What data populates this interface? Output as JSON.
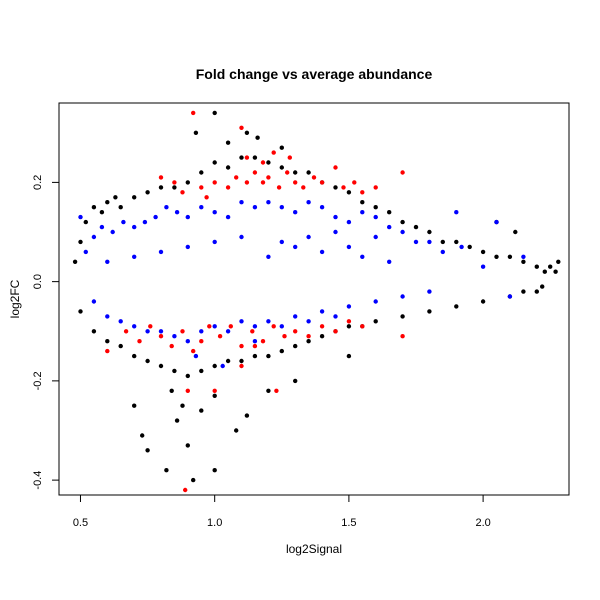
{
  "chart_data": {
    "type": "scatter",
    "title": "Fold change vs average abundance",
    "xlabel": "log2Signal",
    "ylabel": "log2FC",
    "xlim": [
      0.42,
      2.32
    ],
    "ylim": [
      -0.43,
      0.36
    ],
    "xticks": [
      0.5,
      1.0,
      1.5,
      2.0
    ],
    "xtick_labels": [
      "0.5",
      "1.0",
      "1.5",
      "2.0"
    ],
    "yticks": [
      -0.4,
      -0.2,
      0.0,
      0.2
    ],
    "ytick_labels": [
      "-0.4",
      "-0.2",
      "0.0",
      "0.2"
    ],
    "grid": false,
    "legend": "none",
    "series": [
      {
        "color": "#000000",
        "points": [
          [
            0.48,
            0.04
          ],
          [
            0.5,
            0.08
          ],
          [
            0.52,
            0.12
          ],
          [
            0.55,
            0.15
          ],
          [
            0.58,
            0.14
          ],
          [
            0.6,
            0.16
          ],
          [
            0.63,
            0.17
          ],
          [
            0.65,
            0.15
          ],
          [
            0.7,
            0.17
          ],
          [
            0.75,
            0.18
          ],
          [
            0.8,
            0.19
          ],
          [
            0.85,
            0.19
          ],
          [
            0.9,
            0.2
          ],
          [
            0.95,
            0.22
          ],
          [
            1.0,
            0.24
          ],
          [
            1.05,
            0.23
          ],
          [
            1.1,
            0.25
          ],
          [
            1.15,
            0.25
          ],
          [
            1.2,
            0.24
          ],
          [
            1.25,
            0.23
          ],
          [
            1.3,
            0.22
          ],
          [
            1.35,
            0.22
          ],
          [
            1.4,
            0.2
          ],
          [
            1.45,
            0.19
          ],
          [
            1.5,
            0.18
          ],
          [
            1.55,
            0.16
          ],
          [
            1.6,
            0.15
          ],
          [
            1.65,
            0.14
          ],
          [
            1.7,
            0.12
          ],
          [
            1.75,
            0.11
          ],
          [
            1.8,
            0.1
          ],
          [
            1.85,
            0.08
          ],
          [
            1.9,
            0.08
          ],
          [
            1.95,
            0.07
          ],
          [
            2.0,
            0.06
          ],
          [
            2.05,
            0.05
          ],
          [
            2.1,
            0.05
          ],
          [
            2.15,
            0.04
          ],
          [
            2.2,
            0.03
          ],
          [
            2.25,
            0.03
          ],
          [
            2.27,
            0.02
          ],
          [
            0.5,
            -0.06
          ],
          [
            0.55,
            -0.1
          ],
          [
            0.6,
            -0.12
          ],
          [
            0.65,
            -0.13
          ],
          [
            0.7,
            -0.15
          ],
          [
            0.75,
            -0.16
          ],
          [
            0.8,
            -0.17
          ],
          [
            0.85,
            -0.18
          ],
          [
            0.9,
            -0.19
          ],
          [
            0.95,
            -0.18
          ],
          [
            1.0,
            -0.17
          ],
          [
            1.05,
            -0.16
          ],
          [
            1.1,
            -0.16
          ],
          [
            1.15,
            -0.15
          ],
          [
            1.2,
            -0.15
          ],
          [
            1.25,
            -0.14
          ],
          [
            1.3,
            -0.13
          ],
          [
            1.35,
            -0.12
          ],
          [
            1.4,
            -0.11
          ],
          [
            1.45,
            -0.1
          ],
          [
            1.5,
            -0.09
          ],
          [
            1.55,
            -0.09
          ],
          [
            1.6,
            -0.08
          ],
          [
            1.7,
            -0.07
          ],
          [
            1.8,
            -0.06
          ],
          [
            1.9,
            -0.05
          ],
          [
            2.0,
            -0.04
          ],
          [
            2.1,
            -0.03
          ],
          [
            2.2,
            -0.02
          ],
          [
            0.93,
            0.3
          ],
          [
            1.0,
            0.34
          ],
          [
            1.12,
            0.3
          ],
          [
            1.16,
            0.29
          ],
          [
            1.25,
            0.27
          ],
          [
            1.05,
            0.28
          ],
          [
            0.73,
            -0.31
          ],
          [
            0.75,
            -0.34
          ],
          [
            0.82,
            -0.38
          ],
          [
            0.86,
            -0.28
          ],
          [
            0.9,
            -0.33
          ],
          [
            0.92,
            -0.4
          ],
          [
            1.0,
            -0.38
          ],
          [
            1.08,
            -0.3
          ],
          [
            1.12,
            -0.27
          ],
          [
            0.88,
            -0.25
          ],
          [
            0.7,
            -0.25
          ],
          [
            0.95,
            -0.26
          ],
          [
            1.5,
            -0.15
          ],
          [
            1.3,
            -0.2
          ],
          [
            1.2,
            -0.22
          ],
          [
            1.0,
            -0.23
          ],
          [
            0.84,
            -0.22
          ],
          [
            2.05,
            0.12
          ],
          [
            2.12,
            0.1
          ],
          [
            2.23,
            0.02
          ],
          [
            2.28,
            0.04
          ],
          [
            2.15,
            -0.02
          ],
          [
            2.22,
            -0.01
          ]
        ]
      },
      {
        "color": "#0000ff",
        "points": [
          [
            0.5,
            0.13
          ],
          [
            0.52,
            0.06
          ],
          [
            0.55,
            0.09
          ],
          [
            0.58,
            0.11
          ],
          [
            0.62,
            0.1
          ],
          [
            0.66,
            0.12
          ],
          [
            0.7,
            0.11
          ],
          [
            0.74,
            0.12
          ],
          [
            0.78,
            0.13
          ],
          [
            0.82,
            0.15
          ],
          [
            0.86,
            0.14
          ],
          [
            0.9,
            0.13
          ],
          [
            0.95,
            0.15
          ],
          [
            1.0,
            0.14
          ],
          [
            1.05,
            0.13
          ],
          [
            1.1,
            0.16
          ],
          [
            1.15,
            0.15
          ],
          [
            1.2,
            0.16
          ],
          [
            1.25,
            0.15
          ],
          [
            1.3,
            0.14
          ],
          [
            1.35,
            0.16
          ],
          [
            1.4,
            0.15
          ],
          [
            1.45,
            0.13
          ],
          [
            1.5,
            0.12
          ],
          [
            1.55,
            0.14
          ],
          [
            1.6,
            0.13
          ],
          [
            1.65,
            0.11
          ],
          [
            1.7,
            0.1
          ],
          [
            1.75,
            0.08
          ],
          [
            1.8,
            0.08
          ],
          [
            1.85,
            0.06
          ],
          [
            1.9,
            0.14
          ],
          [
            1.92,
            0.07
          ],
          [
            2.0,
            0.03
          ],
          [
            2.05,
            0.12
          ],
          [
            2.15,
            0.05
          ],
          [
            1.2,
            0.05
          ],
          [
            1.25,
            0.08
          ],
          [
            1.3,
            0.07
          ],
          [
            1.35,
            0.09
          ],
          [
            1.4,
            0.06
          ],
          [
            1.45,
            0.1
          ],
          [
            1.5,
            0.07
          ],
          [
            1.55,
            0.05
          ],
          [
            1.6,
            0.09
          ],
          [
            1.65,
            0.04
          ],
          [
            1.1,
            0.09
          ],
          [
            1.0,
            0.08
          ],
          [
            0.9,
            0.07
          ],
          [
            0.8,
            0.06
          ],
          [
            0.7,
            0.05
          ],
          [
            0.6,
            0.04
          ],
          [
            0.55,
            -0.04
          ],
          [
            0.6,
            -0.07
          ],
          [
            0.65,
            -0.08
          ],
          [
            0.7,
            -0.09
          ],
          [
            0.75,
            -0.1
          ],
          [
            0.8,
            -0.1
          ],
          [
            0.85,
            -0.11
          ],
          [
            0.9,
            -0.12
          ],
          [
            0.95,
            -0.1
          ],
          [
            1.0,
            -0.09
          ],
          [
            1.05,
            -0.1
          ],
          [
            1.1,
            -0.08
          ],
          [
            1.15,
            -0.09
          ],
          [
            1.2,
            -0.08
          ],
          [
            1.25,
            -0.09
          ],
          [
            1.3,
            -0.07
          ],
          [
            1.35,
            -0.08
          ],
          [
            1.4,
            -0.06
          ],
          [
            1.45,
            -0.07
          ],
          [
            1.5,
            -0.05
          ],
          [
            1.6,
            -0.04
          ],
          [
            1.7,
            -0.03
          ],
          [
            1.8,
            -0.02
          ],
          [
            2.1,
            -0.03
          ],
          [
            0.93,
            -0.15
          ],
          [
            1.03,
            -0.17
          ],
          [
            1.15,
            -0.12
          ]
        ]
      },
      {
        "color": "#ff0000",
        "points": [
          [
            0.92,
            0.34
          ],
          [
            1.1,
            0.31
          ],
          [
            1.12,
            0.25
          ],
          [
            1.18,
            0.24
          ],
          [
            1.22,
            0.26
          ],
          [
            1.28,
            0.25
          ],
          [
            0.8,
            0.21
          ],
          [
            0.85,
            0.2
          ],
          [
            0.88,
            0.18
          ],
          [
            0.95,
            0.19
          ],
          [
            0.97,
            0.17
          ],
          [
            1.0,
            0.2
          ],
          [
            1.05,
            0.19
          ],
          [
            1.08,
            0.21
          ],
          [
            1.12,
            0.2
          ],
          [
            1.15,
            0.22
          ],
          [
            1.18,
            0.2
          ],
          [
            1.2,
            0.21
          ],
          [
            1.24,
            0.19
          ],
          [
            1.27,
            0.22
          ],
          [
            1.3,
            0.2
          ],
          [
            1.33,
            0.19
          ],
          [
            1.37,
            0.21
          ],
          [
            1.4,
            0.2
          ],
          [
            1.45,
            0.23
          ],
          [
            1.48,
            0.19
          ],
          [
            1.52,
            0.2
          ],
          [
            1.55,
            0.18
          ],
          [
            1.7,
            0.22
          ],
          [
            1.6,
            0.19
          ],
          [
            0.6,
            -0.14
          ],
          [
            0.67,
            -0.1
          ],
          [
            0.72,
            -0.12
          ],
          [
            0.76,
            -0.09
          ],
          [
            0.8,
            -0.11
          ],
          [
            0.84,
            -0.13
          ],
          [
            0.88,
            -0.1
          ],
          [
            0.92,
            -0.14
          ],
          [
            0.95,
            -0.12
          ],
          [
            0.98,
            -0.09
          ],
          [
            1.02,
            -0.11
          ],
          [
            1.06,
            -0.09
          ],
          [
            1.1,
            -0.13
          ],
          [
            1.14,
            -0.1
          ],
          [
            1.18,
            -0.12
          ],
          [
            1.22,
            -0.09
          ],
          [
            1.26,
            -0.11
          ],
          [
            1.3,
            -0.1
          ],
          [
            1.35,
            -0.11
          ],
          [
            1.4,
            -0.09
          ],
          [
            1.45,
            -0.1
          ],
          [
            1.5,
            -0.08
          ],
          [
            1.55,
            -0.09
          ],
          [
            1.7,
            -0.11
          ],
          [
            0.89,
            -0.42
          ],
          [
            0.9,
            -0.22
          ],
          [
            1.1,
            -0.17
          ],
          [
            1.0,
            -0.22
          ],
          [
            1.23,
            -0.22
          ],
          [
            1.15,
            -0.13
          ]
        ]
      }
    ]
  }
}
